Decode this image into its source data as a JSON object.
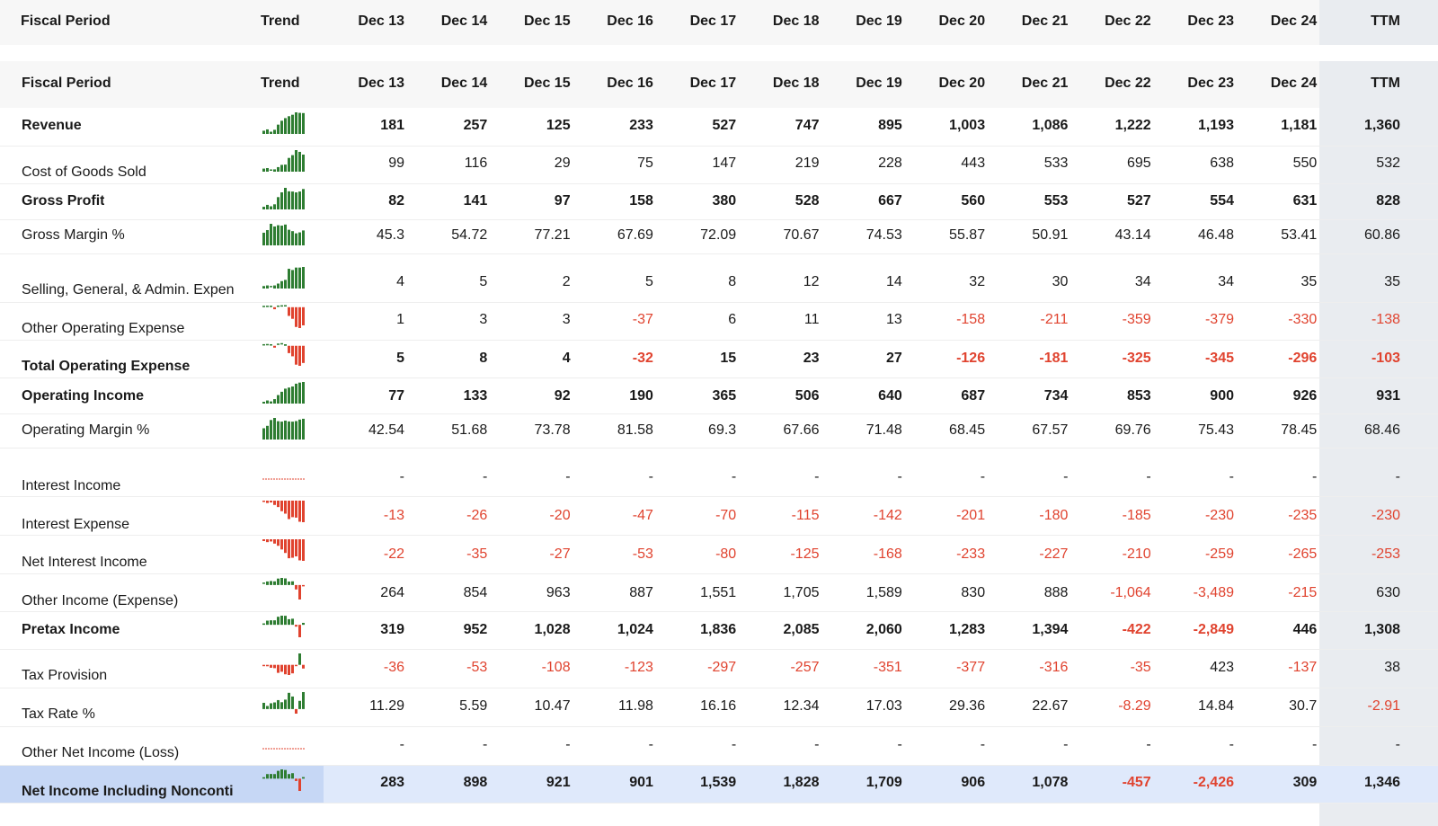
{
  "header": {
    "fiscal_period": "Fiscal Period",
    "trend": "Trend",
    "periods": [
      "Dec 13",
      "Dec 14",
      "Dec 15",
      "Dec 16",
      "Dec 17",
      "Dec 18",
      "Dec 19",
      "Dec 20",
      "Dec 21",
      "Dec 22",
      "Dec 23",
      "Dec 24",
      "TTM"
    ]
  },
  "rows": [
    {
      "label": "Revenue",
      "bold": true,
      "cells": [
        "181",
        "257",
        "125",
        "233",
        "527",
        "747",
        "895",
        "1,003",
        "1,086",
        "1,222",
        "1,193",
        "1,181",
        "1,360"
      ]
    },
    {
      "label": "Cost of Goods Sold",
      "bold": false,
      "cells": [
        "99",
        "116",
        "29",
        "75",
        "147",
        "219",
        "228",
        "443",
        "533",
        "695",
        "638",
        "550",
        "532"
      ]
    },
    {
      "label": "Gross Profit",
      "bold": true,
      "cells": [
        "82",
        "141",
        "97",
        "158",
        "380",
        "528",
        "667",
        "560",
        "553",
        "527",
        "554",
        "631",
        "828"
      ]
    },
    {
      "label": "Gross Margin %",
      "bold": false,
      "cells": [
        "45.3",
        "54.72",
        "77.21",
        "67.69",
        "72.09",
        "70.67",
        "74.53",
        "55.87",
        "50.91",
        "43.14",
        "46.48",
        "53.41",
        "60.86"
      ]
    },
    {
      "label": "Selling, General, & Admin. Expen",
      "bold": false,
      "cells": [
        "4",
        "5",
        "2",
        "5",
        "8",
        "12",
        "14",
        "32",
        "30",
        "34",
        "34",
        "35",
        "35"
      ]
    },
    {
      "label": "Other Operating Expense",
      "bold": false,
      "cells": [
        "1",
        "3",
        "3",
        "-37",
        "6",
        "11",
        "13",
        "-158",
        "-211",
        "-359",
        "-379",
        "-330",
        "-138"
      ]
    },
    {
      "label": "Total Operating Expense",
      "bold": true,
      "cells": [
        "5",
        "8",
        "4",
        "-32",
        "15",
        "23",
        "27",
        "-126",
        "-181",
        "-325",
        "-345",
        "-296",
        "-103"
      ]
    },
    {
      "label": "Operating Income",
      "bold": true,
      "cells": [
        "77",
        "133",
        "92",
        "190",
        "365",
        "506",
        "640",
        "687",
        "734",
        "853",
        "900",
        "926",
        "931"
      ]
    },
    {
      "label": "Operating Margin %",
      "bold": false,
      "cells": [
        "42.54",
        "51.68",
        "73.78",
        "81.58",
        "69.3",
        "67.66",
        "71.48",
        "68.45",
        "67.57",
        "69.76",
        "75.43",
        "78.45",
        "68.46"
      ]
    },
    {
      "label": "Interest Income",
      "bold": false,
      "cells": [
        "-",
        "-",
        "-",
        "-",
        "-",
        "-",
        "-",
        "-",
        "-",
        "-",
        "-",
        "-",
        "-"
      ]
    },
    {
      "label": "Interest Expense",
      "bold": false,
      "cells": [
        "-13",
        "-26",
        "-20",
        "-47",
        "-70",
        "-115",
        "-142",
        "-201",
        "-180",
        "-185",
        "-230",
        "-235",
        "-230"
      ]
    },
    {
      "label": "Net Interest Income",
      "bold": false,
      "cells": [
        "-22",
        "-35",
        "-27",
        "-53",
        "-80",
        "-125",
        "-168",
        "-233",
        "-227",
        "-210",
        "-259",
        "-265",
        "-253"
      ]
    },
    {
      "label": "Other Income (Expense)",
      "bold": false,
      "cells": [
        "264",
        "854",
        "963",
        "887",
        "1,551",
        "1,705",
        "1,589",
        "830",
        "888",
        "-1,064",
        "-3,489",
        "-215",
        "630"
      ]
    },
    {
      "label": "Pretax Income",
      "bold": true,
      "cells": [
        "319",
        "952",
        "1,028",
        "1,024",
        "1,836",
        "2,085",
        "2,060",
        "1,283",
        "1,394",
        "-422",
        "-2,849",
        "446",
        "1,308"
      ]
    },
    {
      "label": "Tax Provision",
      "bold": false,
      "cells": [
        "-36",
        "-53",
        "-108",
        "-123",
        "-297",
        "-257",
        "-351",
        "-377",
        "-316",
        "-35",
        "423",
        "-137",
        "38"
      ]
    },
    {
      "label": "Tax Rate %",
      "bold": false,
      "cells": [
        "11.29",
        "5.59",
        "10.47",
        "11.98",
        "16.16",
        "12.34",
        "17.03",
        "29.36",
        "22.67",
        "-8.29",
        "14.84",
        "30.7",
        "-2.91"
      ]
    },
    {
      "label": "Other Net Income (Loss)",
      "bold": false,
      "cells": [
        "-",
        "-",
        "-",
        "-",
        "-",
        "-",
        "-",
        "-",
        "-",
        "-",
        "-",
        "-",
        "-"
      ]
    },
    {
      "label": "Net Income Including Nonconti",
      "bold": true,
      "cells": [
        "283",
        "898",
        "921",
        "901",
        "1,539",
        "1,828",
        "1,709",
        "906",
        "1,078",
        "-457",
        "-2,426",
        "309",
        "1,346"
      ]
    }
  ]
}
